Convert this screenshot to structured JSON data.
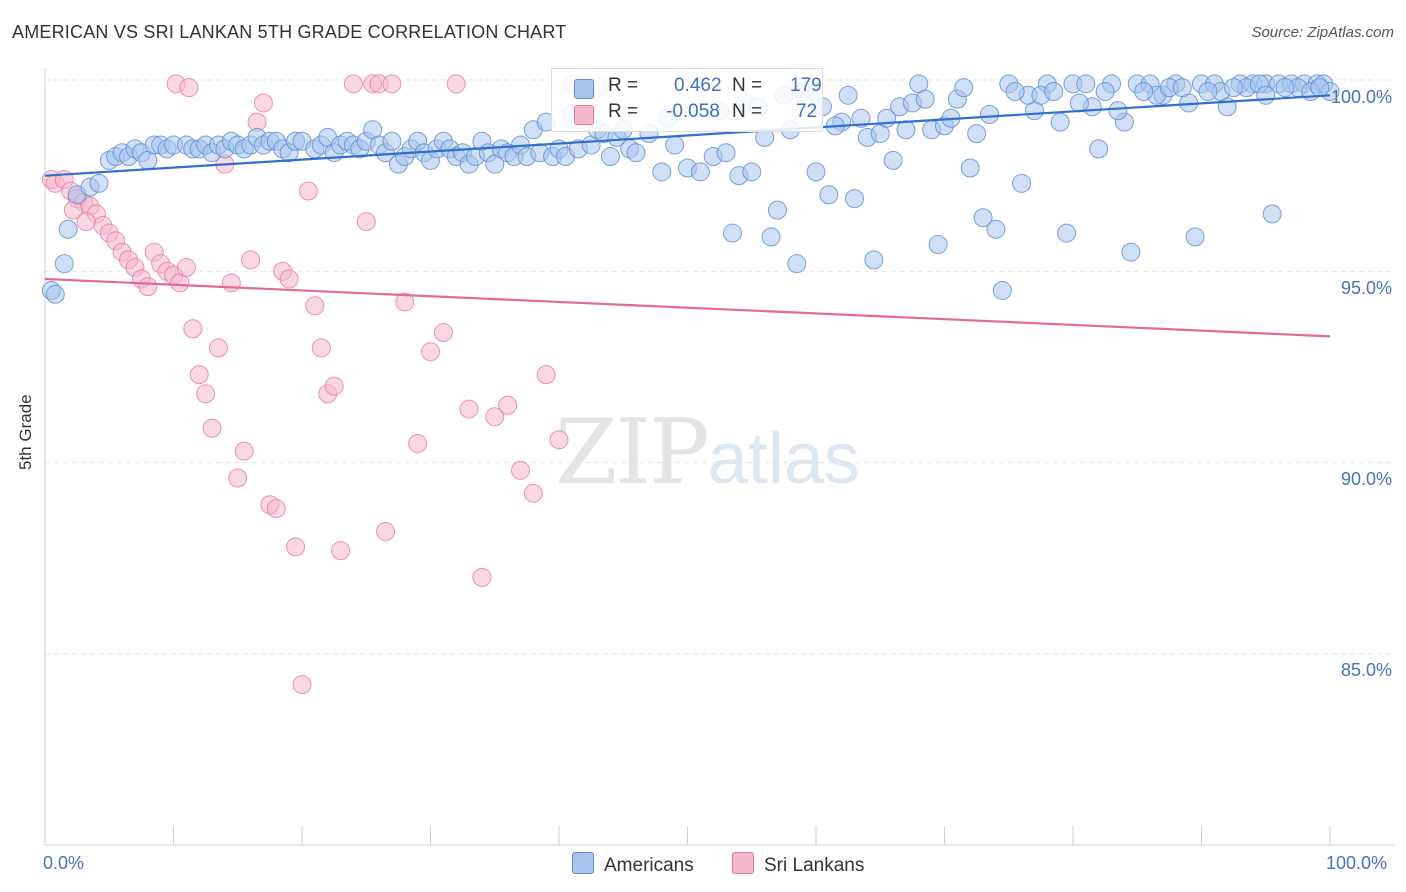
{
  "title": "AMERICAN VS SRI LANKAN 5TH GRADE CORRELATION CHART",
  "source": "Source: ZipAtlas.com",
  "watermark": {
    "zip": "ZIP",
    "atlas": "atlas"
  },
  "colors": {
    "americans": "#a8c4ec",
    "americans_stroke": "#5b8bd6",
    "americans_line": "#2f6fcf",
    "srilankans": "#f5b8ca",
    "srilankans_stroke": "#e9799b",
    "srilankans_line": "#e46a95",
    "axis_text": "#4472c4",
    "grid": "#e5e5e5"
  },
  "legend_top": {
    "rows": [
      {
        "r_label": "R = ",
        "r_value": "0.462",
        "n_label": "N = ",
        "n_value": "179"
      },
      {
        "r_label": "R = ",
        "r_value": "-0.058",
        "n_label": "N = ",
        "n_value": "72"
      }
    ]
  },
  "legend_bottom": {
    "americans": "Americans",
    "srilankans": "Sri Lankans"
  },
  "chart_data": {
    "type": "scatter",
    "xlabel": "",
    "ylabel": "5th Grade",
    "x_tick_labels": [
      "0.0%",
      "100.0%"
    ],
    "y_tick_labels": [
      "100.0%",
      "95.0%",
      "90.0%",
      "85.0%"
    ],
    "y_ticks": [
      100,
      95,
      90,
      85
    ],
    "xlim": [
      0,
      100
    ],
    "ylim": [
      80.2,
      100.6
    ],
    "grid": true,
    "legend": "top-center",
    "series": [
      {
        "name": "Americans",
        "trend": {
          "x": [
            0,
            100
          ],
          "y": [
            97.5,
            99.6
          ]
        },
        "points": [
          [
            0.5,
            94.5
          ],
          [
            0.8,
            94.4
          ],
          [
            1.5,
            95.2
          ],
          [
            1.8,
            96.1
          ],
          [
            2.5,
            97.0
          ],
          [
            3.5,
            97.2
          ],
          [
            4.2,
            97.3
          ],
          [
            5.0,
            97.9
          ],
          [
            5.5,
            98.0
          ],
          [
            6.0,
            98.1
          ],
          [
            6.5,
            98.0
          ],
          [
            7.0,
            98.2
          ],
          [
            7.5,
            98.1
          ],
          [
            8.0,
            97.9
          ],
          [
            8.5,
            98.3
          ],
          [
            9.0,
            98.3
          ],
          [
            9.5,
            98.2
          ],
          [
            10.0,
            98.3
          ],
          [
            11.0,
            98.3
          ],
          [
            11.5,
            98.2
          ],
          [
            12.0,
            98.2
          ],
          [
            12.5,
            98.3
          ],
          [
            13.0,
            98.1
          ],
          [
            13.5,
            98.3
          ],
          [
            14.0,
            98.2
          ],
          [
            14.5,
            98.4
          ],
          [
            15.0,
            98.3
          ],
          [
            15.5,
            98.2
          ],
          [
            16.0,
            98.3
          ],
          [
            16.5,
            98.5
          ],
          [
            17.0,
            98.3
          ],
          [
            17.5,
            98.4
          ],
          [
            18.0,
            98.4
          ],
          [
            18.5,
            98.2
          ],
          [
            19.0,
            98.1
          ],
          [
            19.5,
            98.4
          ],
          [
            20.0,
            98.4
          ],
          [
            21.0,
            98.2
          ],
          [
            21.5,
            98.3
          ],
          [
            22.0,
            98.5
          ],
          [
            22.5,
            98.1
          ],
          [
            23.0,
            98.3
          ],
          [
            23.5,
            98.4
          ],
          [
            24.0,
            98.3
          ],
          [
            24.5,
            98.2
          ],
          [
            25.0,
            98.4
          ],
          [
            25.5,
            98.7
          ],
          [
            26.0,
            98.3
          ],
          [
            26.5,
            98.1
          ],
          [
            27.0,
            98.4
          ],
          [
            27.5,
            97.8
          ],
          [
            28.0,
            98.0
          ],
          [
            28.5,
            98.2
          ],
          [
            29.0,
            98.4
          ],
          [
            29.5,
            98.1
          ],
          [
            30.0,
            97.9
          ],
          [
            30.5,
            98.2
          ],
          [
            31.0,
            98.4
          ],
          [
            31.5,
            98.2
          ],
          [
            32.0,
            98.0
          ],
          [
            32.5,
            98.1
          ],
          [
            33.0,
            97.8
          ],
          [
            33.5,
            98.0
          ],
          [
            34.0,
            98.4
          ],
          [
            34.5,
            98.1
          ],
          [
            35.0,
            97.8
          ],
          [
            35.5,
            98.2
          ],
          [
            36.0,
            98.1
          ],
          [
            36.5,
            98.0
          ],
          [
            37.0,
            98.3
          ],
          [
            37.5,
            98.0
          ],
          [
            38.0,
            98.7
          ],
          [
            38.5,
            98.1
          ],
          [
            39.0,
            98.9
          ],
          [
            39.5,
            98.0
          ],
          [
            40.0,
            98.2
          ],
          [
            40.5,
            98.0
          ],
          [
            41.0,
            99.1
          ],
          [
            41.5,
            98.2
          ],
          [
            42.0,
            99.1
          ],
          [
            42.5,
            98.3
          ],
          [
            43.0,
            98.7
          ],
          [
            43.5,
            98.6
          ],
          [
            44.0,
            98.0
          ],
          [
            44.5,
            98.5
          ],
          [
            45.0,
            98.7
          ],
          [
            45.5,
            98.2
          ],
          [
            46.0,
            98.1
          ],
          [
            47.0,
            98.6
          ],
          [
            48.0,
            97.6
          ],
          [
            49.0,
            98.3
          ],
          [
            50.0,
            97.7
          ],
          [
            51.0,
            97.6
          ],
          [
            52.0,
            98.0
          ],
          [
            53.0,
            98.1
          ],
          [
            54.0,
            97.5
          ],
          [
            55.0,
            97.6
          ],
          [
            56.0,
            98.5
          ],
          [
            57.0,
            96.6
          ],
          [
            58.0,
            98.7
          ],
          [
            59.0,
            99.7
          ],
          [
            60.0,
            97.6
          ],
          [
            61.0,
            97.0
          ],
          [
            62.0,
            98.9
          ],
          [
            63.0,
            96.9
          ],
          [
            64.0,
            98.5
          ],
          [
            65.0,
            98.6
          ],
          [
            66.0,
            97.9
          ],
          [
            67.0,
            98.7
          ],
          [
            68.0,
            99.9
          ],
          [
            69.0,
            98.7
          ],
          [
            70.0,
            98.8
          ],
          [
            71.0,
            99.5
          ],
          [
            72.0,
            97.7
          ],
          [
            73.0,
            96.4
          ],
          [
            74.0,
            96.1
          ],
          [
            75.0,
            99.9
          ],
          [
            76.0,
            97.3
          ],
          [
            77.0,
            99.2
          ],
          [
            78.0,
            99.9
          ],
          [
            79.0,
            98.9
          ],
          [
            80.0,
            99.9
          ],
          [
            81.0,
            99.9
          ],
          [
            82.0,
            98.2
          ],
          [
            83.0,
            99.9
          ],
          [
            84.0,
            98.9
          ],
          [
            85.0,
            99.9
          ],
          [
            86.0,
            99.9
          ],
          [
            87.0,
            99.6
          ],
          [
            88.0,
            99.9
          ],
          [
            89.0,
            99.4
          ],
          [
            90.0,
            99.9
          ],
          [
            91.0,
            99.9
          ],
          [
            92.0,
            99.3
          ],
          [
            93.0,
            99.9
          ],
          [
            94.0,
            99.9
          ],
          [
            95.0,
            99.9
          ],
          [
            96.0,
            99.9
          ],
          [
            97.0,
            99.9
          ],
          [
            98.0,
            99.9
          ],
          [
            99.0,
            99.9
          ],
          [
            99.5,
            99.9
          ],
          [
            100.0,
            99.7
          ],
          [
            58.5,
            95.2
          ],
          [
            48.5,
            99.0
          ],
          [
            53.5,
            96.0
          ],
          [
            56.5,
            95.9
          ],
          [
            64.5,
            95.3
          ],
          [
            69.5,
            95.7
          ],
          [
            74.5,
            94.5
          ],
          [
            79.5,
            96.0
          ],
          [
            84.5,
            95.5
          ],
          [
            89.5,
            95.9
          ],
          [
            95.5,
            96.5
          ],
          [
            63.5,
            99.0
          ],
          [
            66.5,
            99.3
          ],
          [
            70.5,
            99.0
          ],
          [
            72.5,
            98.6
          ],
          [
            76.5,
            99.6
          ],
          [
            81.5,
            99.3
          ],
          [
            86.5,
            99.6
          ],
          [
            91.5,
            99.7
          ],
          [
            93.5,
            99.8
          ],
          [
            97.5,
            99.8
          ],
          [
            60.5,
            99.3
          ],
          [
            61.5,
            98.8
          ],
          [
            65.5,
            99.0
          ],
          [
            67.5,
            99.4
          ],
          [
            73.5,
            99.1
          ],
          [
            77.5,
            99.6
          ],
          [
            80.5,
            99.4
          ],
          [
            83.5,
            99.2
          ],
          [
            85.5,
            99.7
          ],
          [
            87.5,
            99.8
          ],
          [
            90.5,
            99.7
          ],
          [
            92.5,
            99.8
          ],
          [
            94.5,
            99.9
          ],
          [
            96.5,
            99.8
          ],
          [
            98.5,
            99.7
          ],
          [
            52.5,
            99.2
          ],
          [
            54.5,
            99.4
          ],
          [
            55.5,
            99.3
          ],
          [
            57.5,
            99.6
          ],
          [
            59.5,
            99.5
          ],
          [
            62.5,
            99.6
          ],
          [
            68.5,
            99.5
          ],
          [
            71.5,
            99.8
          ],
          [
            75.5,
            99.7
          ],
          [
            78.5,
            99.7
          ],
          [
            82.5,
            99.7
          ],
          [
            88.5,
            99.8
          ],
          [
            95.0,
            99.6
          ],
          [
            99.2,
            99.8
          ]
        ]
      },
      {
        "name": "Sri Lankans",
        "trend": {
          "x": [
            0,
            100
          ],
          "y": [
            94.8,
            93.3
          ]
        },
        "points": [
          [
            0.5,
            97.4
          ],
          [
            0.8,
            97.3
          ],
          [
            1.5,
            97.4
          ],
          [
            2.0,
            97.1
          ],
          [
            2.5,
            96.9
          ],
          [
            3.0,
            96.8
          ],
          [
            3.5,
            96.7
          ],
          [
            4.0,
            96.5
          ],
          [
            4.5,
            96.2
          ],
          [
            5.0,
            96.0
          ],
          [
            5.5,
            95.8
          ],
          [
            6.0,
            95.5
          ],
          [
            6.5,
            95.3
          ],
          [
            7.0,
            95.1
          ],
          [
            7.5,
            94.8
          ],
          [
            8.0,
            94.6
          ],
          [
            8.5,
            95.5
          ],
          [
            9.0,
            95.2
          ],
          [
            9.5,
            95.0
          ],
          [
            10.0,
            94.9
          ],
          [
            10.5,
            94.7
          ],
          [
            11.0,
            95.1
          ],
          [
            11.5,
            93.5
          ],
          [
            12.0,
            92.3
          ],
          [
            12.5,
            91.8
          ],
          [
            13.0,
            90.9
          ],
          [
            13.5,
            93.0
          ],
          [
            14.0,
            97.8
          ],
          [
            14.5,
            94.7
          ],
          [
            15.0,
            89.6
          ],
          [
            15.5,
            90.3
          ],
          [
            16.0,
            95.3
          ],
          [
            16.5,
            98.9
          ],
          [
            17.0,
            99.4
          ],
          [
            17.5,
            88.9
          ],
          [
            18.0,
            88.8
          ],
          [
            18.5,
            95.0
          ],
          [
            19.0,
            94.8
          ],
          [
            19.5,
            87.8
          ],
          [
            20.0,
            84.2
          ],
          [
            20.5,
            97.1
          ],
          [
            21.0,
            94.1
          ],
          [
            21.5,
            93.0
          ],
          [
            22.0,
            91.8
          ],
          [
            22.5,
            92.0
          ],
          [
            23.0,
            87.7
          ],
          [
            24.0,
            99.9
          ],
          [
            25.0,
            96.3
          ],
          [
            25.5,
            99.9
          ],
          [
            26.0,
            99.9
          ],
          [
            26.5,
            88.2
          ],
          [
            27.0,
            99.9
          ],
          [
            28.0,
            94.2
          ],
          [
            29.0,
            90.5
          ],
          [
            30.0,
            92.9
          ],
          [
            31.0,
            93.4
          ],
          [
            32.0,
            99.9
          ],
          [
            33.0,
            91.4
          ],
          [
            34.0,
            87.0
          ],
          [
            35.0,
            91.2
          ],
          [
            36.0,
            91.5
          ],
          [
            37.0,
            89.8
          ],
          [
            38.0,
            89.2
          ],
          [
            39.0,
            92.3
          ],
          [
            40.0,
            90.6
          ],
          [
            41.0,
            99.9
          ],
          [
            42.0,
            98.9
          ],
          [
            43.0,
            99.8
          ],
          [
            10.2,
            99.9
          ],
          [
            11.2,
            99.8
          ],
          [
            2.2,
            96.6
          ],
          [
            3.2,
            96.3
          ]
        ]
      }
    ]
  }
}
